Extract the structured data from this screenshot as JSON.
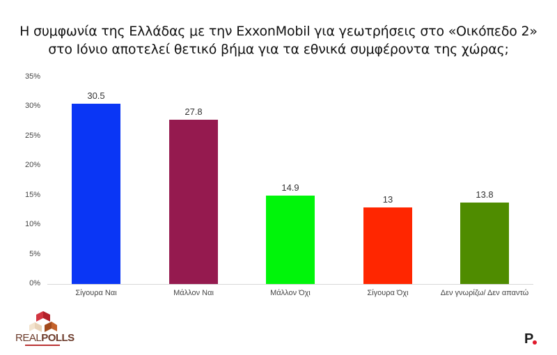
{
  "title": {
    "line1": "Η συμφωνία της Ελλάδας με την ExxonMobil για γεωτρήσεις στο «Οικόπεδο 2»",
    "line2": "στο Ιόνιο αποτελεί θετικό βήμα για τα εθνικά συμφέροντα της χώρας;"
  },
  "y_axis": {
    "ticks": [
      "35%",
      "30%",
      "25%",
      "20%",
      "15%",
      "10%",
      "5%",
      "0%"
    ]
  },
  "bars": [
    {
      "label": "Σίγουρα Ναι",
      "value": "30.5",
      "color": "#0a36f5"
    },
    {
      "label": "Μάλλον Ναι",
      "value": "27.8",
      "color": "#951a4f"
    },
    {
      "label": "Μάλλον Όχι",
      "value": "14.9",
      "color": "#00f50a"
    },
    {
      "label": "Σίγουρα Όχι",
      "value": "13",
      "color": "#ff2600"
    },
    {
      "label": "Δεν γνωρίζω/ Δεν απαντώ",
      "value": "13.8",
      "color": "#4f8c00"
    }
  ],
  "logos": {
    "left": {
      "real": "REAL",
      "polls": "POLLS"
    },
    "right": {
      "letter": "P"
    }
  },
  "chart_data": {
    "type": "bar",
    "title": "Η συμφωνία της Ελλάδας με την ExxonMobil για γεωτρήσεις στο «Οικόπεδο 2» στο Ιόνιο αποτελεί θετικό βήμα για τα εθνικά συμφέροντα της χώρας;",
    "categories": [
      "Σίγουρα Ναι",
      "Μάλλον Ναι",
      "Μάλλον Όχι",
      "Σίγουρα Όχι",
      "Δεν γνωρίζω/ Δεν απαντώ"
    ],
    "values": [
      30.5,
      27.8,
      14.9,
      13,
      13.8
    ],
    "colors": [
      "#0a36f5",
      "#951a4f",
      "#00f50a",
      "#ff2600",
      "#4f8c00"
    ],
    "xlabel": "",
    "ylabel": "",
    "ylim": [
      0,
      35
    ],
    "yticks": [
      "0%",
      "5%",
      "10%",
      "15%",
      "20%",
      "25%",
      "30%",
      "35%"
    ],
    "data_labels": true,
    "grid": false,
    "legend": "none"
  }
}
